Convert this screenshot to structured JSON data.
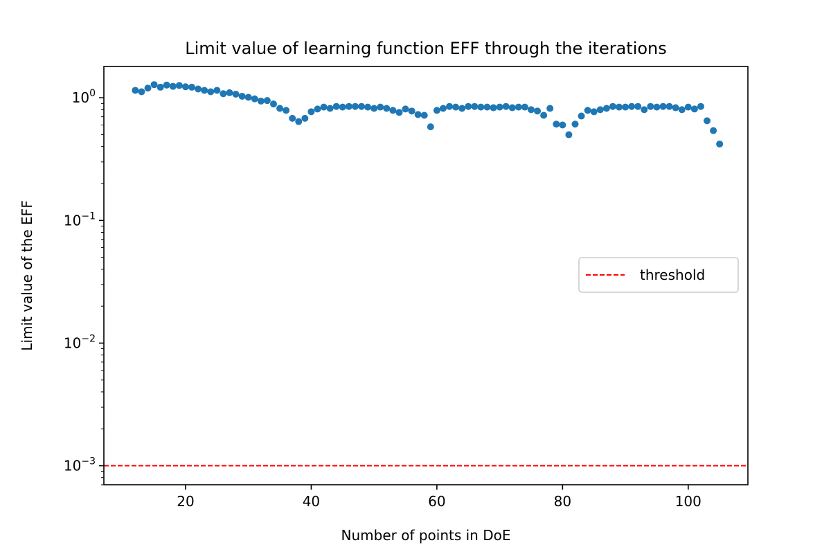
{
  "chart_data": {
    "type": "scatter",
    "title": "Limit value of learning function EFF through the iterations",
    "xlabel": "Number of points in DoE",
    "ylabel": "Limit value of the EFF",
    "xlim": [
      7,
      109.5
    ],
    "ylim": [
      0.0007,
      1.8
    ],
    "yscale": "log",
    "grid": false,
    "x_ticks": [
      20,
      40,
      60,
      80,
      100
    ],
    "y_ticks": [
      {
        "value": 1,
        "base": "10",
        "exp": "0"
      },
      {
        "value": 0.1,
        "base": "10",
        "exp": "−1"
      },
      {
        "value": 0.01,
        "base": "10",
        "exp": "−2"
      },
      {
        "value": 0.001,
        "base": "10",
        "exp": "−3"
      }
    ],
    "series": [
      {
        "point_color": "#1f77b4",
        "x": [
          12,
          13,
          14,
          15,
          16,
          17,
          18,
          19,
          20,
          21,
          22,
          23,
          24,
          25,
          26,
          27,
          28,
          29,
          30,
          31,
          32,
          33,
          34,
          35,
          36,
          37,
          38,
          39,
          40,
          41,
          42,
          43,
          44,
          45,
          46,
          47,
          48,
          49,
          50,
          51,
          52,
          53,
          54,
          55,
          56,
          57,
          58,
          59,
          60,
          61,
          62,
          63,
          64,
          65,
          66,
          67,
          68,
          69,
          70,
          71,
          72,
          73,
          74,
          75,
          76,
          77,
          78,
          79,
          80,
          81,
          82,
          83,
          84,
          85,
          86,
          87,
          88,
          89,
          90,
          91,
          92,
          93,
          94,
          95,
          96,
          97,
          98,
          99,
          100,
          101,
          102,
          103,
          104,
          105
        ],
        "y": [
          1.15,
          1.12,
          1.2,
          1.28,
          1.22,
          1.27,
          1.24,
          1.26,
          1.23,
          1.22,
          1.18,
          1.15,
          1.12,
          1.15,
          1.08,
          1.1,
          1.07,
          1.03,
          1.01,
          0.98,
          0.94,
          0.95,
          0.89,
          0.82,
          0.79,
          0.68,
          0.64,
          0.68,
          0.77,
          0.81,
          0.84,
          0.82,
          0.85,
          0.84,
          0.85,
          0.85,
          0.85,
          0.84,
          0.82,
          0.84,
          0.82,
          0.79,
          0.76,
          0.81,
          0.78,
          0.73,
          0.72,
          0.58,
          0.79,
          0.82,
          0.85,
          0.84,
          0.82,
          0.85,
          0.85,
          0.84,
          0.84,
          0.83,
          0.84,
          0.85,
          0.83,
          0.84,
          0.84,
          0.8,
          0.78,
          0.72,
          0.82,
          0.61,
          0.6,
          0.5,
          0.61,
          0.71,
          0.79,
          0.77,
          0.8,
          0.82,
          0.85,
          0.84,
          0.84,
          0.85,
          0.85,
          0.8,
          0.85,
          0.84,
          0.85,
          0.85,
          0.83,
          0.8,
          0.84,
          0.81,
          0.85,
          0.65,
          0.54,
          0.42
        ]
      }
    ],
    "threshold": {
      "y": 0.001,
      "color": "#ff0000",
      "style": "dashed"
    },
    "legend": {
      "entries": [
        "threshold"
      ],
      "placement": "center-right"
    }
  }
}
